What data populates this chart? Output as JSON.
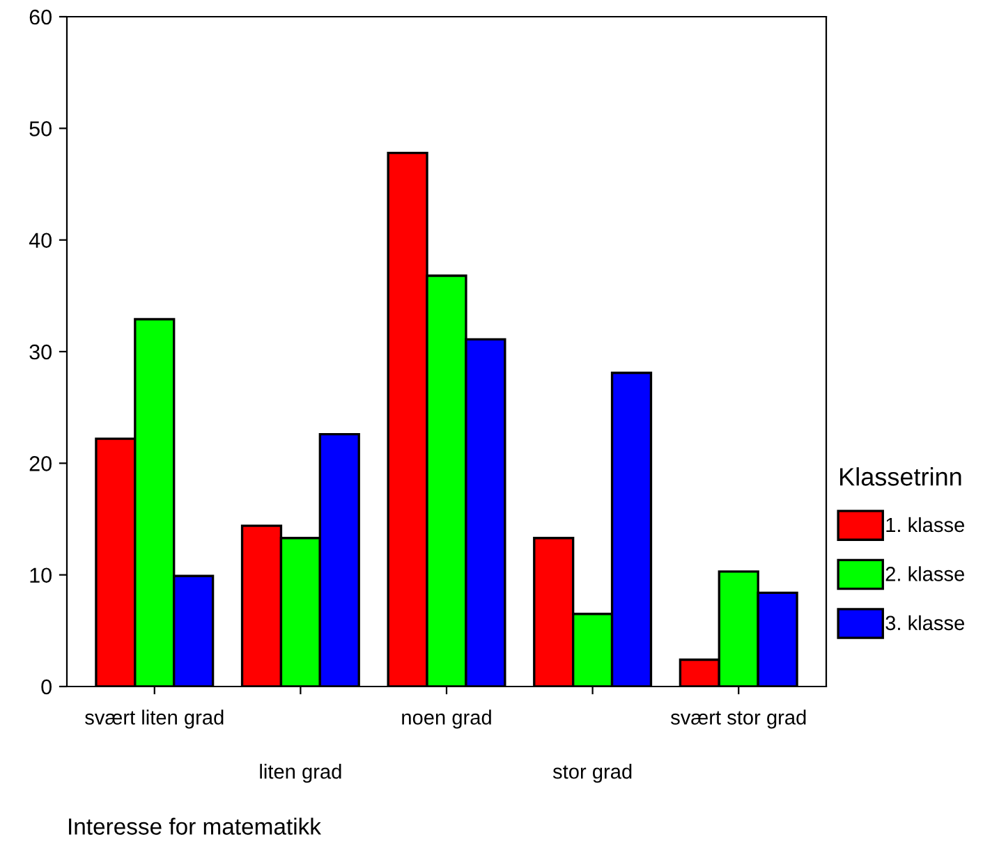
{
  "chart_data": {
    "type": "bar",
    "xlabel": "Interesse for matematikk",
    "legend_title": "Klassetrinn",
    "legend": "right",
    "categories": [
      "svært liten grad",
      "liten grad",
      "noen grad",
      "stor grad",
      "svært stor grad"
    ],
    "series": [
      {
        "name": "1. klasse",
        "color": "#ff0000",
        "values": [
          22.2,
          14.4,
          47.8,
          13.3,
          2.4
        ]
      },
      {
        "name": "2. klasse",
        "color": "#00ff00",
        "values": [
          32.9,
          13.3,
          36.8,
          6.5,
          10.3
        ]
      },
      {
        "name": "3. klasse",
        "color": "#0000ff",
        "values": [
          9.9,
          22.6,
          31.1,
          28.1,
          8.4
        ]
      }
    ],
    "ylim": [
      0,
      60
    ],
    "yticks": [
      0,
      10,
      20,
      30,
      40,
      50,
      60
    ],
    "grid": false
  }
}
